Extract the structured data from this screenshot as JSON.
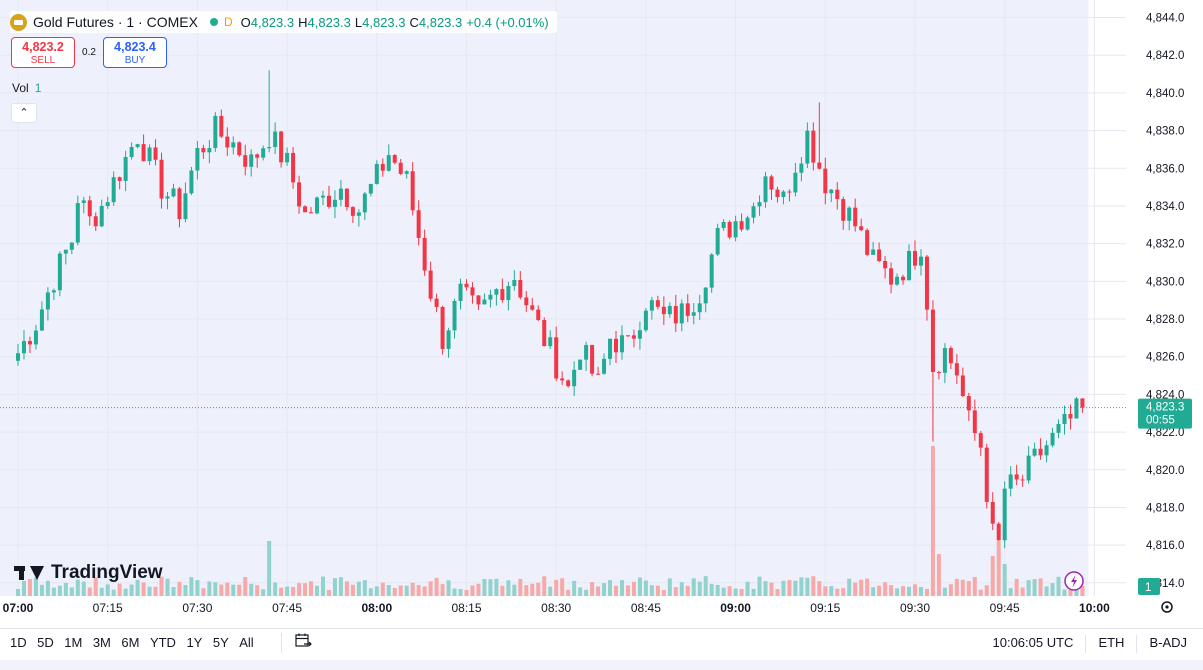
{
  "legend": {
    "title": "Gold Futures · 1 · COMEX",
    "badge": "D",
    "open_label": "O",
    "open": "4,823.3",
    "high_label": "H",
    "high": "4,823.3",
    "low_label": "L",
    "low": "4,823.3",
    "close_label": "C",
    "close": "4,823.3",
    "change": "+0.4 (+0.01%)"
  },
  "trade": {
    "sell_price": "4,823.2",
    "sell_label": "SELL",
    "spread": "0.2",
    "buy_price": "4,823.4",
    "buy_label": "BUY"
  },
  "volume_label": {
    "label": "Vol",
    "value": "1"
  },
  "collapse_icon": "chevron-up-icon",
  "brand": "TradingView",
  "price_tag": {
    "price": "4,823.3",
    "countdown": "00:55"
  },
  "volume_tag": "1",
  "toolbar": {
    "ranges": [
      "1D",
      "5D",
      "1M",
      "3M",
      "6M",
      "YTD",
      "1Y",
      "5Y",
      "All"
    ],
    "time": "10:06:05 UTC",
    "session": "ETH",
    "adjust": "B-ADJ"
  },
  "colors": {
    "up": "#22ab94",
    "down": "#f23645",
    "up_volume": "#92d2cc",
    "down_volume": "#f7a9a7",
    "session_bg": "#eef0fc",
    "last_price": "#22ab94"
  },
  "chart_data": {
    "type": "candlestick",
    "title": "Gold Futures · 1 · COMEX",
    "interval": "1 minute",
    "x_ticks": [
      "07:00",
      "07:15",
      "07:30",
      "07:45",
      "08:00",
      "08:15",
      "08:30",
      "08:45",
      "09:00",
      "09:15",
      "09:30",
      "09:45",
      "10:00"
    ],
    "y_ticks": [
      "4,814.0",
      "4,816.0",
      "4,818.0",
      "4,820.0",
      "4,822.0",
      "4,824.0",
      "4,826.0",
      "4,828.0",
      "4,830.0",
      "4,832.0",
      "4,834.0",
      "4,836.0",
      "4,838.0",
      "4,840.0",
      "4,842.0",
      "4,844.0"
    ],
    "ylim": [
      4813.3,
      4844.4
    ],
    "last_price": 4823.3,
    "anchors": [
      [
        "07:00",
        4826.2
      ],
      [
        "07:03",
        4827.8
      ],
      [
        "07:06",
        4830.2
      ],
      [
        "07:09",
        4832.2
      ],
      [
        "07:10",
        4834.5
      ],
      [
        "07:12",
        4833.2
      ],
      [
        "07:14",
        4834.0
      ],
      [
        "07:18",
        4836.5
      ],
      [
        "07:20",
        4837.8
      ],
      [
        "07:24",
        4835.0
      ],
      [
        "07:27",
        4833.8
      ],
      [
        "07:30",
        4836.8
      ],
      [
        "07:33",
        4838.0
      ],
      [
        "07:36",
        4837.3
      ],
      [
        "07:39",
        4836.3
      ],
      [
        "07:42",
        4837.8
      ],
      [
        "07:45",
        4836.2
      ],
      [
        "07:48",
        4833.5
      ],
      [
        "07:51",
        4834.3
      ],
      [
        "07:54",
        4835.0
      ],
      [
        "07:57",
        4833.8
      ],
      [
        "08:00",
        4835.5
      ],
      [
        "08:02",
        4836.8
      ],
      [
        "08:05",
        4835.3
      ],
      [
        "08:09",
        4829.5
      ],
      [
        "08:11",
        4827.0
      ],
      [
        "08:14",
        4829.3
      ],
      [
        "08:17",
        4828.2
      ],
      [
        "08:20",
        4829.5
      ],
      [
        "08:23",
        4830.3
      ],
      [
        "08:26",
        4828.2
      ],
      [
        "08:29",
        4826.3
      ],
      [
        "08:32",
        4824.3
      ],
      [
        "08:34",
        4826.5
      ],
      [
        "08:37",
        4824.5
      ],
      [
        "08:39",
        4827.0
      ],
      [
        "08:42",
        4826.5
      ],
      [
        "08:45",
        4829.0
      ],
      [
        "08:48",
        4828.0
      ],
      [
        "08:51",
        4828.3
      ],
      [
        "08:54",
        4829.5
      ],
      [
        "08:57",
        4832.3
      ],
      [
        "09:00",
        4833.2
      ],
      [
        "09:03",
        4834.0
      ],
      [
        "09:05",
        4835.8
      ],
      [
        "09:08",
        4834.3
      ],
      [
        "09:10",
        4836.3
      ],
      [
        "09:12",
        4837.8
      ],
      [
        "09:15",
        4835.3
      ],
      [
        "09:17",
        4834.5
      ],
      [
        "09:20",
        4833.0
      ],
      [
        "09:23",
        4831.0
      ],
      [
        "09:26",
        4830.2
      ],
      [
        "09:29",
        4831.0
      ],
      [
        "09:31",
        4832.0
      ],
      [
        "09:32",
        4829.0
      ],
      [
        "09:33",
        4825.5
      ],
      [
        "09:35",
        4826.3
      ],
      [
        "09:37",
        4825.2
      ],
      [
        "09:39",
        4822.5
      ],
      [
        "09:41",
        4821.3
      ],
      [
        "09:43",
        4816.5
      ],
      [
        "09:44",
        4816.0
      ],
      [
        "09:45",
        4819.0
      ],
      [
        "09:47",
        4819.2
      ],
      [
        "09:48",
        4819.5
      ],
      [
        "09:50",
        4820.5
      ],
      [
        "09:52",
        4821.3
      ],
      [
        "09:55",
        4822.3
      ],
      [
        "09:57",
        4823.0
      ],
      [
        "09:58",
        4823.3
      ]
    ],
    "volume": {
      "typical_height": "low",
      "spikes": [
        [
          "07:42",
          "high"
        ],
        [
          "09:33",
          "very high"
        ],
        [
          "09:44",
          "high"
        ]
      ]
    },
    "session_shading": [
      "07:00",
      "09:59"
    ]
  }
}
